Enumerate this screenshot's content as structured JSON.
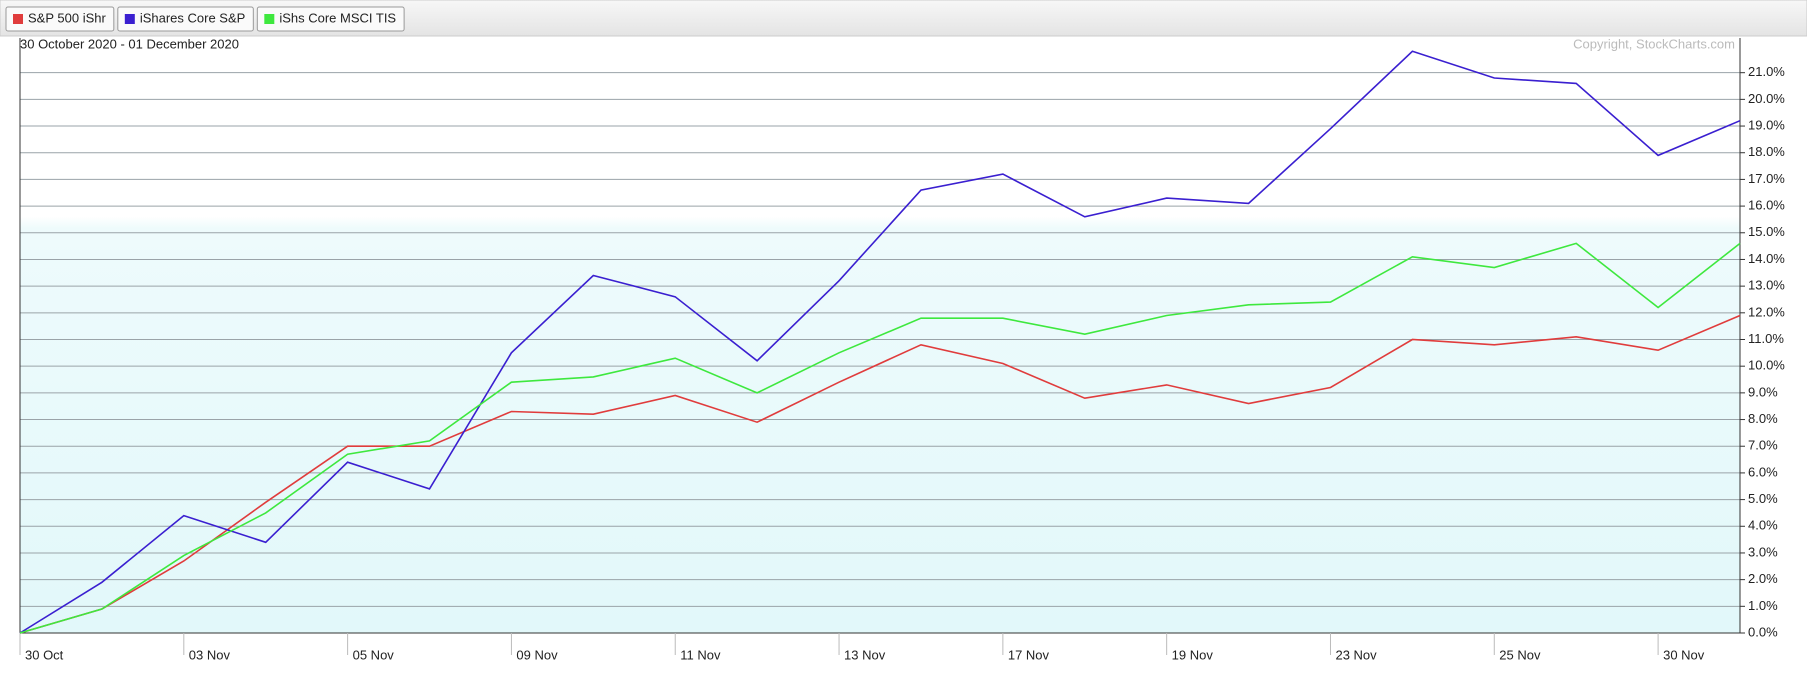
{
  "chart_data": {
    "type": "line",
    "subtitle": "30 October 2020 - 01 December 2020",
    "annotation": "Copyright, StockCharts.com",
    "categories": [
      "30 Oct",
      null,
      "03 Nov",
      null,
      "05 Nov",
      null,
      "09 Nov",
      null,
      "11 Nov",
      null,
      "13 Nov",
      null,
      "17 Nov",
      null,
      "19 Nov",
      null,
      "23 Nov",
      null,
      "25 Nov",
      null,
      "30 Nov",
      null
    ],
    "series": [
      {
        "name": "S&P 500 iShr",
        "color": "#e03c3c",
        "values": [
          0,
          0.9,
          2.7,
          4.9,
          7.0,
          7.0,
          8.3,
          8.2,
          8.9,
          7.9,
          9.4,
          10.8,
          10.1,
          8.8,
          9.3,
          8.6,
          9.2,
          11.0,
          10.8,
          11.1,
          10.6,
          11.9
        ]
      },
      {
        "name": "iShares Core S&P",
        "color": "#3a1fd0",
        "values": [
          0,
          1.9,
          4.4,
          3.4,
          6.4,
          5.4,
          10.5,
          13.4,
          12.6,
          10.2,
          13.2,
          16.6,
          17.2,
          15.6,
          16.3,
          16.1,
          18.9,
          21.8,
          20.8,
          20.6,
          17.9,
          19.2
        ]
      },
      {
        "name": "iShs Core MSCI TIS",
        "color": "#3ee83e",
        "values": [
          0,
          0.9,
          2.9,
          4.5,
          6.7,
          7.2,
          9.4,
          9.6,
          10.3,
          9.0,
          10.5,
          11.8,
          11.8,
          11.2,
          11.9,
          12.3,
          12.4,
          14.1,
          13.7,
          14.6,
          12.2,
          14.6
        ]
      }
    ],
    "ylim": [
      0,
      22.3
    ],
    "yticks": [
      {
        "value": 0,
        "label": "0.0%"
      },
      {
        "value": 1,
        "label": "1.0%"
      },
      {
        "value": 2,
        "label": "2.0%"
      },
      {
        "value": 3,
        "label": "3.0%"
      },
      {
        "value": 4,
        "label": "4.0%"
      },
      {
        "value": 5,
        "label": "5.0%"
      },
      {
        "value": 6,
        "label": "6.0%"
      },
      {
        "value": 7,
        "label": "7.0%"
      },
      {
        "value": 8,
        "label": "8.0%"
      },
      {
        "value": 9,
        "label": "9.0%"
      },
      {
        "value": 10,
        "label": "10.0%"
      },
      {
        "value": 11,
        "label": "11.0%"
      },
      {
        "value": 12,
        "label": "12.0%"
      },
      {
        "value": 13,
        "label": "13.0%"
      },
      {
        "value": 14,
        "label": "14.0%"
      },
      {
        "value": 15,
        "label": "15.0%"
      },
      {
        "value": 16,
        "label": "16.0%"
      },
      {
        "value": 17,
        "label": "17.0%"
      },
      {
        "value": 18,
        "label": "18.0%"
      },
      {
        "value": 19,
        "label": "19.0%"
      },
      {
        "value": 20,
        "label": "20.0%"
      },
      {
        "value": 21,
        "label": "21.0%"
      }
    ],
    "grid": true,
    "legend": "top-left"
  }
}
